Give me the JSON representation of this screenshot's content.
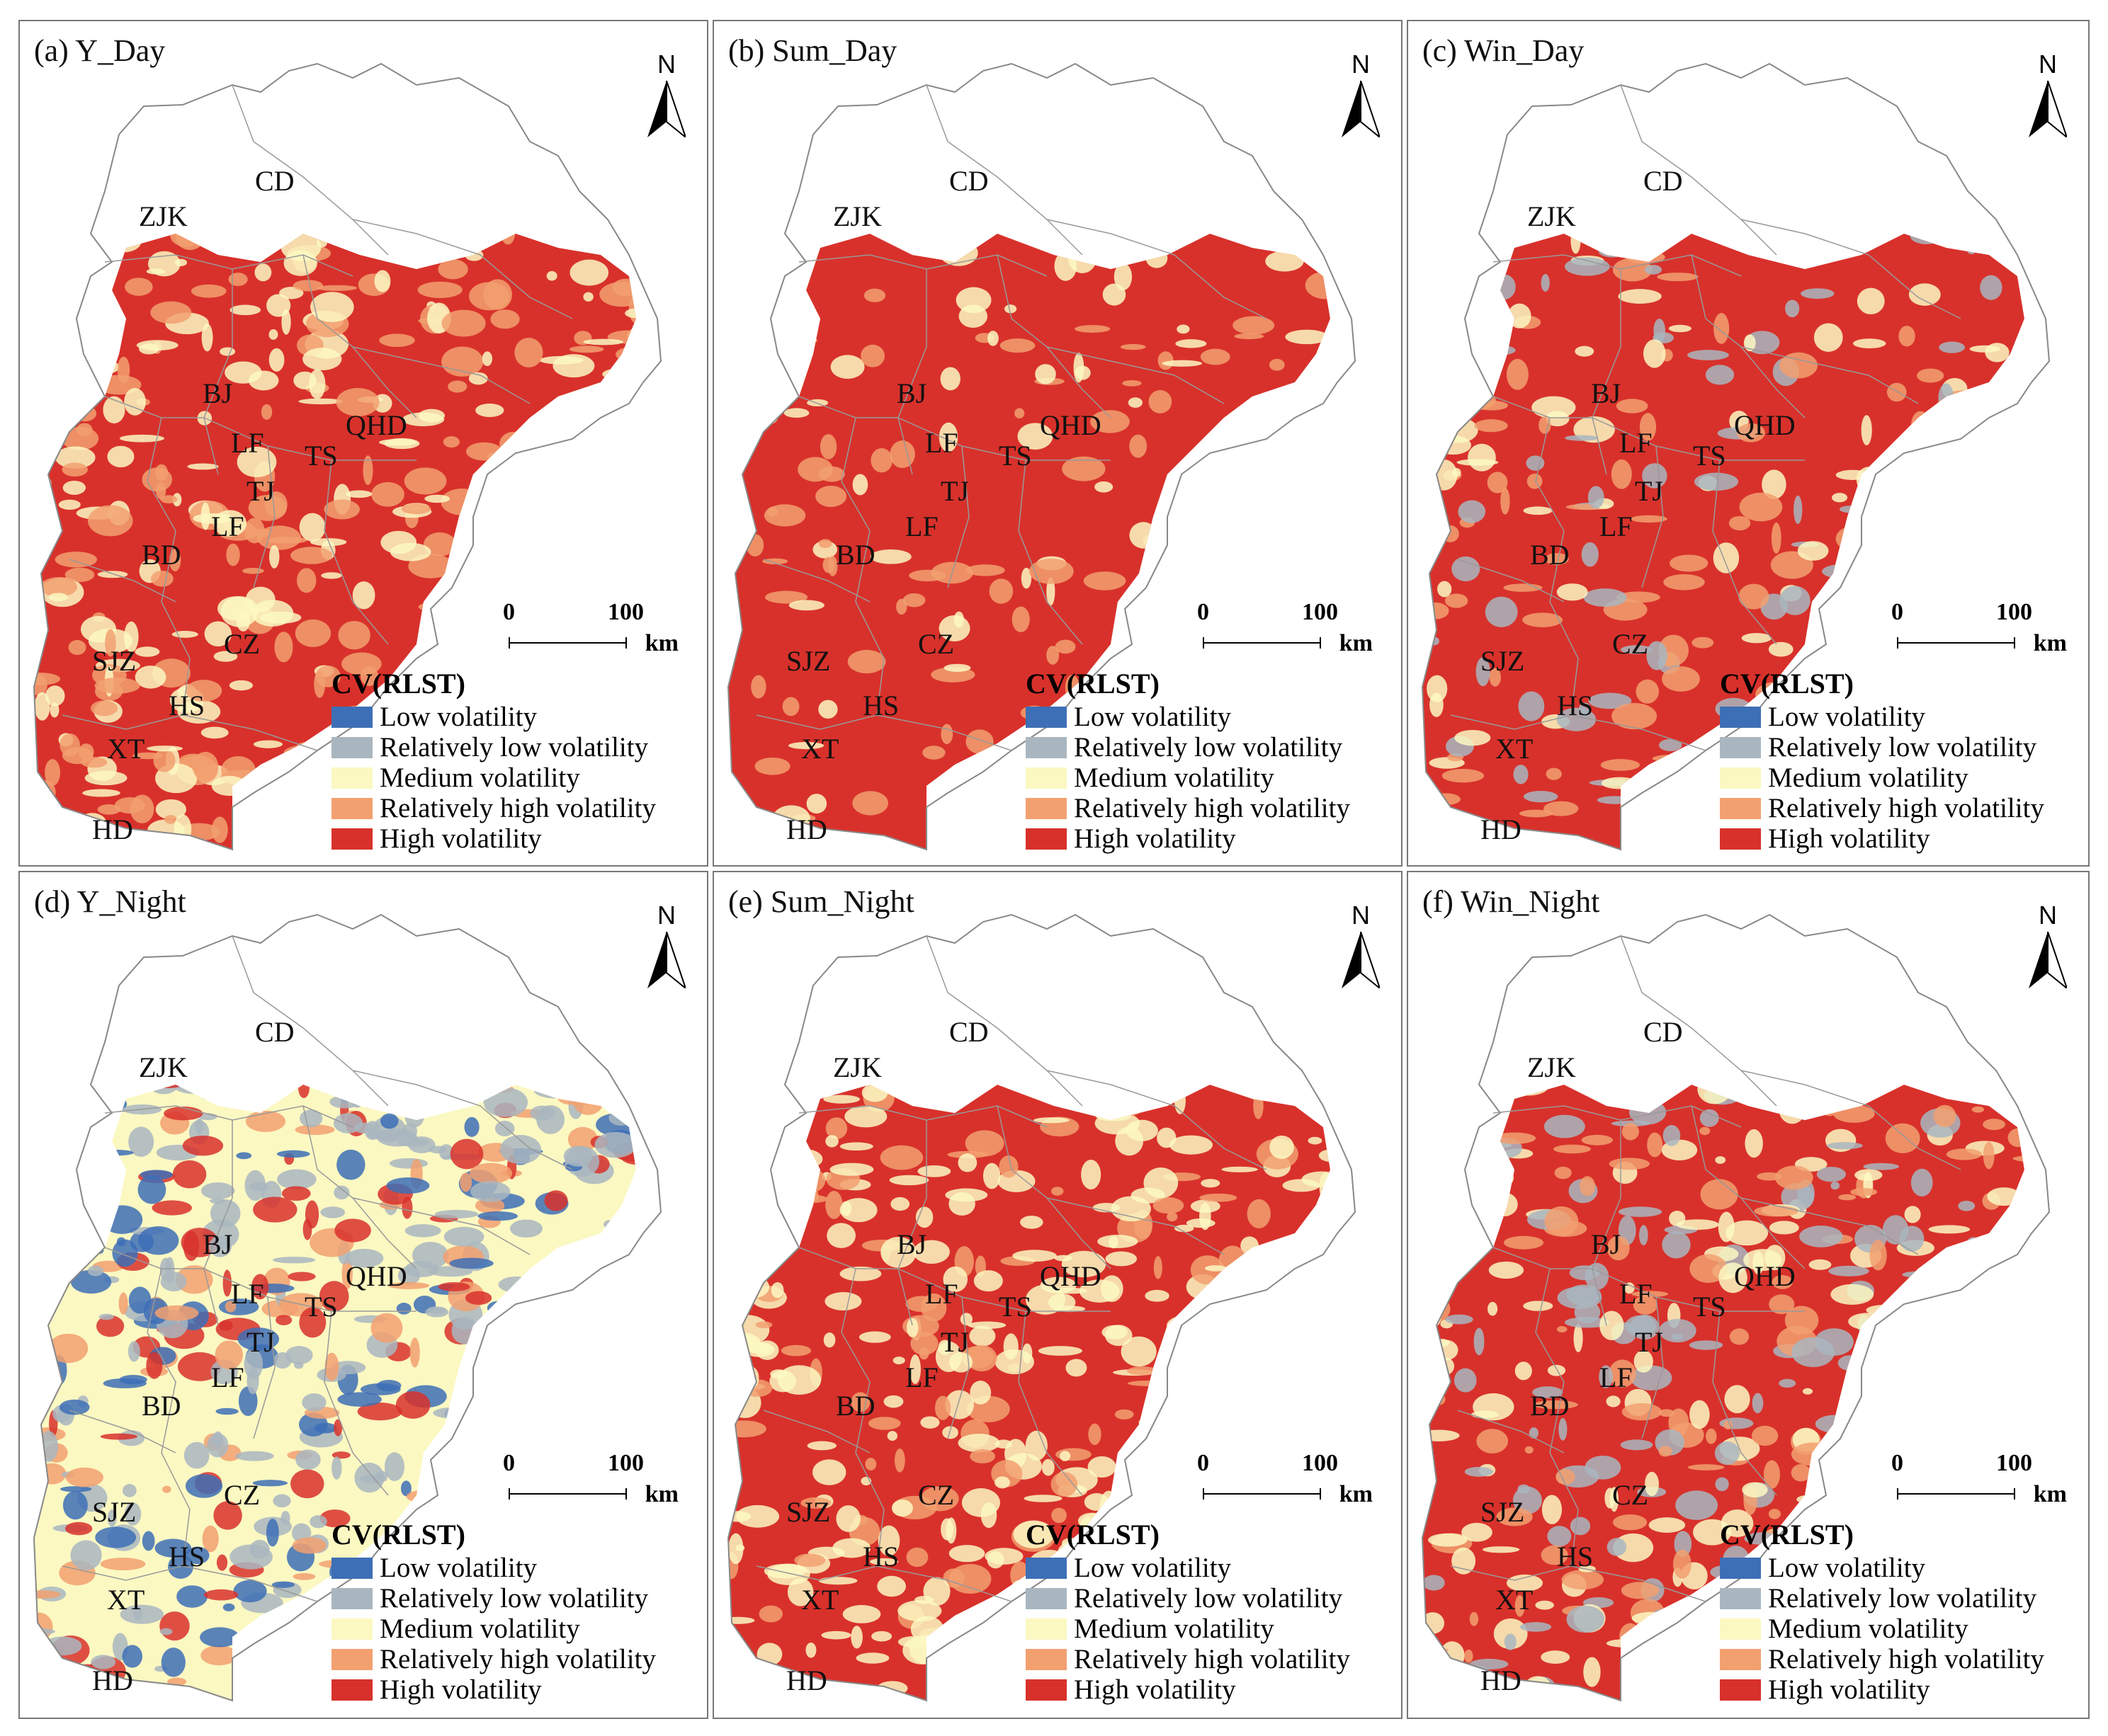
{
  "panels": [
    {
      "id": "a",
      "title": "(a) Y_Day",
      "scheme": "day"
    },
    {
      "id": "b",
      "title": "(b) Sum_Day",
      "scheme": "sumday"
    },
    {
      "id": "c",
      "title": "(c) Win_Day",
      "scheme": "winday"
    },
    {
      "id": "d",
      "title": "(d) Y_Night",
      "scheme": "ynight"
    },
    {
      "id": "e",
      "title": "(e) Sum_Night",
      "scheme": "sumnight"
    },
    {
      "id": "f",
      "title": "(f) Win_Night",
      "scheme": "winnight"
    }
  ],
  "north_label": "N",
  "scale": {
    "start": "0",
    "end": "100",
    "unit": "km"
  },
  "cities": [
    "CD",
    "ZJK",
    "BJ",
    "QHD",
    "LF",
    "TS",
    "TJ",
    "LF",
    "BD",
    "SJZ",
    "CZ",
    "HS",
    "XT",
    "HD"
  ],
  "legend": {
    "title": "CV(RLST)",
    "items": [
      {
        "label": "Low volatility",
        "color": "#3d6fb6"
      },
      {
        "label": "Relatively low volatility",
        "color": "#a9b6c0"
      },
      {
        "label": "Medium volatility",
        "color": "#fbf8c2"
      },
      {
        "label": "Relatively high volatility",
        "color": "#f2a070"
      },
      {
        "label": "High volatility",
        "color": "#d8312b"
      }
    ]
  }
}
